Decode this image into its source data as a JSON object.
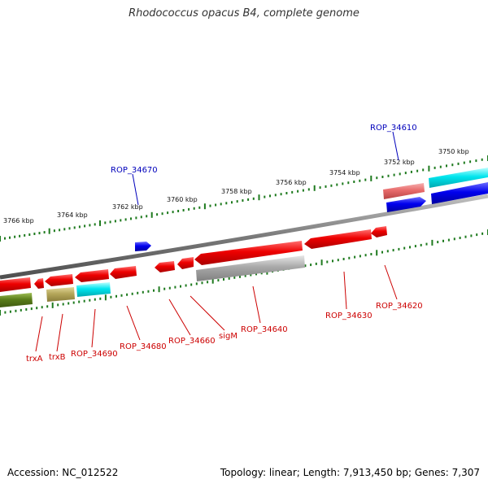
{
  "title": "Rhodococcus opacus B4, complete genome",
  "footer": {
    "accession": "Accession: NC_012522",
    "summary": "Topology: linear; Length: 7,913,450 bp; Genes: 7,307"
  },
  "colors": {
    "gene_red": "#ee0000",
    "gene_cyan": "#00e5ee",
    "gene_blue": "#0000ee",
    "gene_grey": "#a8a8a8",
    "gene_olive": "#5a7d1a",
    "gene_khaki": "#b5a75a",
    "gene_pink": "#e86b6b",
    "backbone": "#808080",
    "tick": "#1e7a1e",
    "label_red": "#cc0000",
    "label_blue": "#0000bb"
  },
  "scale": {
    "tick_labels": [
      "3766 kbp",
      "3764 kbp",
      "3762 kbp",
      "3760 kbp",
      "3758 kbp",
      "3756 kbp",
      "3754 kbp",
      "3752 kbp",
      "3750 kbp"
    ]
  },
  "gene_labels": {
    "above": [
      "ROP_34670",
      "ROP_34610"
    ],
    "below": [
      "trxA",
      "trxB",
      "ROP_34690",
      "ROP_34680",
      "ROP_34660",
      "sigM",
      "ROP_34640",
      "ROP_34630",
      "ROP_34620"
    ]
  }
}
